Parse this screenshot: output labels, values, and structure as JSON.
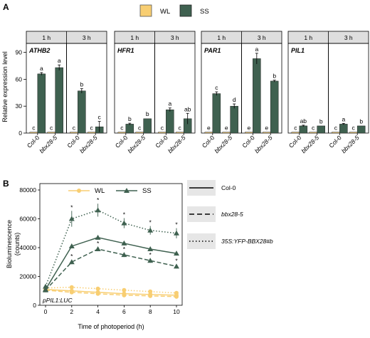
{
  "panel_a": {
    "label": "A",
    "legend": [
      {
        "name": "WL",
        "color": "#f8ce72"
      },
      {
        "name": "SS",
        "color": "#3f6150"
      }
    ],
    "ylabel": "Relative expression level",
    "facet_labels": [
      "1 h",
      "3 h"
    ],
    "genotypes": [
      "Col-0",
      "bbx28-5"
    ],
    "yticks": [
      0,
      30,
      60,
      90
    ],
    "ylim": [
      0,
      100
    ]
  },
  "panel_b": {
    "label": "B",
    "ylabel": "Bioluminescence",
    "ylabel2": "(counts)",
    "xlabel": "Time of photoperiod (h)",
    "reporter": "pPIL1:LUC",
    "yticks": [
      "0",
      "20000",
      "40000",
      "60000",
      "80000"
    ],
    "xticks": [
      "0",
      "2",
      "4",
      "6",
      "8",
      "10"
    ],
    "legend_light": [
      {
        "name": "WL",
        "color": "#f8ce72"
      },
      {
        "name": "SS",
        "color": "#3f6150"
      }
    ],
    "legend_genotype": [
      "Col-0",
      "bbx28-5",
      "35S:YFP-BBX28#b"
    ]
  },
  "colors": {
    "WL": "#f8ce72",
    "SS": "#3f6150"
  },
  "chart_data": [
    {
      "type": "bar",
      "title": "ATHB2",
      "ylabel": "Relative expression level",
      "ylim": [
        0,
        100
      ],
      "series": [
        {
          "name": "WL",
          "values": [
            1,
            1,
            1,
            1
          ],
          "errors": [
            0.3,
            0.3,
            0.3,
            0.3
          ],
          "letters": [
            "c",
            "c",
            "c",
            "c"
          ]
        },
        {
          "name": "SS",
          "values": [
            66,
            73,
            47,
            7
          ],
          "errors": [
            1.5,
            3,
            2.5,
            6
          ],
          "letters": [
            "a",
            "a",
            "b",
            "c"
          ]
        }
      ],
      "categories": [
        "1 h Col-0",
        "1 h bbx28-5",
        "3 h Col-0",
        "3 h bbx28-5"
      ]
    },
    {
      "type": "bar",
      "title": "HFR1",
      "ylim": [
        0,
        100
      ],
      "series": [
        {
          "name": "WL",
          "values": [
            1,
            1,
            1,
            1
          ],
          "errors": [
            0.3,
            0.3,
            0.3,
            0.3
          ],
          "letters": [
            "c",
            "c",
            "c",
            "c"
          ]
        },
        {
          "name": "SS",
          "values": [
            10,
            16,
            26,
            16
          ],
          "errors": [
            1,
            0.5,
            2,
            6
          ],
          "letters": [
            "b",
            "b",
            "a",
            "ab"
          ]
        }
      ],
      "categories": [
        "1 h Col-0",
        "1 h bbx28-5",
        "3 h Col-0",
        "3 h bbx28-5"
      ]
    },
    {
      "type": "bar",
      "title": "PAR1",
      "ylim": [
        0,
        100
      ],
      "series": [
        {
          "name": "WL",
          "values": [
            1,
            1,
            1,
            1
          ],
          "errors": [
            0.3,
            0.3,
            0.3,
            0.3
          ],
          "letters": [
            "e",
            "e",
            "e",
            "e"
          ]
        },
        {
          "name": "SS",
          "values": [
            44,
            30,
            83,
            58
          ],
          "errors": [
            2,
            2.5,
            6,
            1
          ],
          "letters": [
            "c",
            "d",
            "a",
            "b"
          ]
        }
      ],
      "categories": [
        "1 h Col-0",
        "1 h bbx28-5",
        "3 h Col-0",
        "3 h bbx28-5"
      ]
    },
    {
      "type": "bar",
      "title": "PIL1",
      "ylim": [
        0,
        100
      ],
      "series": [
        {
          "name": "WL",
          "values": [
            1,
            1,
            1,
            1
          ],
          "errors": [
            0.3,
            0.3,
            0.3,
            0.3
          ],
          "letters": [
            "c",
            "c",
            "c",
            "c"
          ]
        },
        {
          "name": "SS",
          "values": [
            8,
            8,
            10,
            8
          ],
          "errors": [
            0.8,
            0.5,
            0.8,
            0.5
          ],
          "letters": [
            "ab",
            "b",
            "a",
            "b"
          ]
        }
      ],
      "categories": [
        "1 h Col-0",
        "1 h bbx28-5",
        "3 h Col-0",
        "3 h bbx28-5"
      ]
    },
    {
      "type": "line",
      "title": "pPIL1:LUC",
      "xlabel": "Time of photoperiod (h)",
      "ylabel": "Bioluminescence (counts)",
      "x": [
        0,
        2,
        4,
        6,
        8,
        10
      ],
      "ylim": [
        0,
        80000
      ],
      "xlim": [
        0,
        10
      ],
      "series": [
        {
          "name": "WL Col-0",
          "light": "WL",
          "line": "solid",
          "values": [
            11000,
            10000,
            9000,
            8000,
            7500,
            7000
          ],
          "errors": [
            800,
            800,
            800,
            800,
            800,
            800
          ]
        },
        {
          "name": "WL bbx28-5",
          "light": "WL",
          "line": "dashed",
          "values": [
            10500,
            9000,
            8000,
            7000,
            6500,
            6000
          ],
          "errors": [
            800,
            800,
            800,
            800,
            800,
            800
          ]
        },
        {
          "name": "WL 35S:YFP-BBX28#b",
          "light": "WL",
          "line": "dotted",
          "values": [
            12000,
            12500,
            11500,
            10500,
            9500,
            8500
          ],
          "errors": [
            900,
            900,
            900,
            900,
            900,
            900
          ]
        },
        {
          "name": "SS Col-0",
          "light": "SS",
          "line": "solid",
          "values": [
            11000,
            41000,
            47000,
            43000,
            39000,
            36000
          ],
          "errors": [
            1000,
            1500,
            1500,
            1500,
            1500,
            1500
          ],
          "stars": [
            false,
            false,
            false,
            false,
            false,
            false
          ]
        },
        {
          "name": "SS bbx28-5",
          "light": "SS",
          "line": "dashed",
          "values": [
            10500,
            30000,
            39000,
            35000,
            31000,
            27000
          ],
          "errors": [
            1000,
            1500,
            1500,
            1500,
            1500,
            1500
          ],
          "stars": [
            false,
            true,
            true,
            true,
            true,
            true
          ]
        },
        {
          "name": "SS 35S:YFP-BBX28#b",
          "light": "SS",
          "line": "dotted",
          "values": [
            13000,
            60000,
            66000,
            57000,
            52000,
            50000
          ],
          "errors": [
            1500,
            5500,
            4500,
            3500,
            3000,
            3500
          ],
          "stars": [
            false,
            true,
            true,
            true,
            true,
            true
          ]
        }
      ]
    }
  ]
}
